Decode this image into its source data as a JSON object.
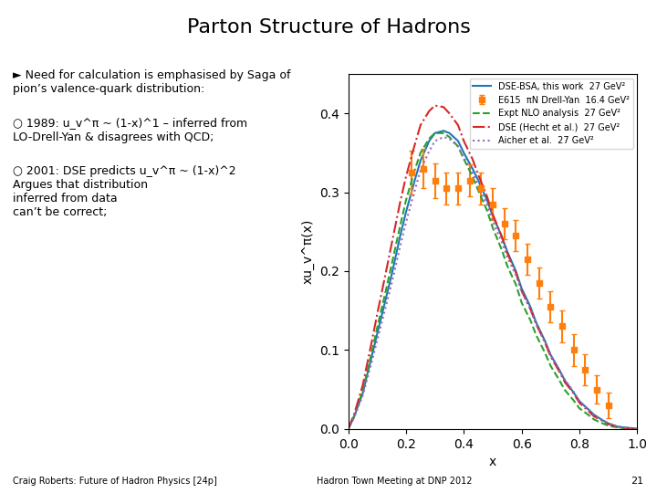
{
  "chart_data": {
    "type": "line",
    "title": "Parton Structure of Hadrons",
    "x_label": "x",
    "y_label": "xu_v^π(x)",
    "x": [
      0.0,
      0.02,
      0.05,
      0.08,
      0.1,
      0.13,
      0.15,
      0.18,
      0.2,
      0.23,
      0.25,
      0.28,
      0.3,
      0.33,
      0.35,
      0.38,
      0.4,
      0.43,
      0.45,
      0.48,
      0.5,
      0.53,
      0.55,
      0.58,
      0.6,
      0.63,
      0.65,
      0.68,
      0.7,
      0.73,
      0.75,
      0.78,
      0.8,
      0.83,
      0.85,
      0.88,
      0.9,
      0.93,
      0.95,
      0.98,
      1.0
    ],
    "series": [
      {
        "name": "DSE-BSA, this work  27 GeV²",
        "type": "line",
        "line_style": "solid",
        "values": [
          0.0,
          0.015,
          0.045,
          0.09,
          0.12,
          0.165,
          0.195,
          0.245,
          0.275,
          0.315,
          0.34,
          0.365,
          0.375,
          0.378,
          0.375,
          0.365,
          0.35,
          0.33,
          0.315,
          0.29,
          0.27,
          0.245,
          0.225,
          0.2,
          0.178,
          0.155,
          0.135,
          0.112,
          0.094,
          0.075,
          0.061,
          0.046,
          0.035,
          0.025,
          0.018,
          0.011,
          0.007,
          0.003,
          0.002,
          0.001,
          0.0
        ]
      },
      {
        "name": "E615  πN Drell-Yan  16.4 GeV²",
        "type": "errorbar",
        "marker": "square",
        "x": [
          0.22,
          0.26,
          0.3,
          0.34,
          0.38,
          0.42,
          0.46,
          0.5,
          0.54,
          0.58,
          0.62,
          0.66,
          0.7,
          0.74,
          0.78,
          0.82,
          0.86,
          0.9
        ],
        "values": [
          0.325,
          0.33,
          0.315,
          0.305,
          0.305,
          0.315,
          0.305,
          0.285,
          0.26,
          0.245,
          0.215,
          0.185,
          0.155,
          0.13,
          0.1,
          0.075,
          0.05,
          0.03
        ],
        "errors": [
          0.028,
          0.025,
          0.022,
          0.02,
          0.02,
          0.02,
          0.02,
          0.02,
          0.02,
          0.02,
          0.02,
          0.02,
          0.02,
          0.02,
          0.02,
          0.02,
          0.018,
          0.016
        ]
      },
      {
        "name": "Expt NLO analysis  27 GeV²",
        "type": "line",
        "line_style": "dashed",
        "values": [
          0.0,
          0.016,
          0.048,
          0.095,
          0.128,
          0.175,
          0.208,
          0.258,
          0.29,
          0.328,
          0.35,
          0.368,
          0.375,
          0.375,
          0.37,
          0.358,
          0.342,
          0.32,
          0.302,
          0.277,
          0.255,
          0.228,
          0.207,
          0.183,
          0.16,
          0.138,
          0.119,
          0.097,
          0.08,
          0.062,
          0.049,
          0.036,
          0.026,
          0.018,
          0.012,
          0.007,
          0.004,
          0.002,
          0.001,
          0.0,
          0.0
        ]
      },
      {
        "name": "DSE (Hecht et al.)  27 GeV²",
        "type": "line",
        "line_style": "dashdot",
        "values": [
          0.0,
          0.018,
          0.055,
          0.108,
          0.145,
          0.198,
          0.234,
          0.288,
          0.32,
          0.36,
          0.385,
          0.403,
          0.41,
          0.408,
          0.4,
          0.385,
          0.365,
          0.342,
          0.322,
          0.295,
          0.272,
          0.245,
          0.223,
          0.198,
          0.175,
          0.152,
          0.133,
          0.11,
          0.092,
          0.073,
          0.059,
          0.045,
          0.033,
          0.023,
          0.016,
          0.01,
          0.006,
          0.003,
          0.001,
          0.0,
          0.0
        ]
      },
      {
        "name": "Aicher et al.  27 GeV²",
        "type": "line",
        "line_style": "dotted",
        "values": [
          0.0,
          0.014,
          0.042,
          0.083,
          0.112,
          0.155,
          0.184,
          0.232,
          0.262,
          0.302,
          0.328,
          0.352,
          0.365,
          0.37,
          0.368,
          0.358,
          0.344,
          0.325,
          0.308,
          0.284,
          0.263,
          0.238,
          0.218,
          0.195,
          0.174,
          0.152,
          0.133,
          0.111,
          0.094,
          0.075,
          0.062,
          0.047,
          0.035,
          0.025,
          0.018,
          0.011,
          0.007,
          0.003,
          0.002,
          0.0,
          0.0
        ]
      }
    ],
    "xlim": [
      0.0,
      1.0
    ],
    "ylim": [
      0.0,
      0.45
    ],
    "xticks": [
      0.0,
      0.2,
      0.4,
      0.6,
      0.8,
      1.0
    ],
    "yticks": [
      0.0,
      0.1,
      0.2,
      0.3,
      0.4
    ],
    "grid": false,
    "legend": "upper right",
    "annotations": [
      "► Need for calculation is emphasised by Saga of\npion’s valence-quark distribution:",
      "○ 1989: u_v^π ~ (1-x)^1 – inferred from\nLO-Drell-Yan & disagrees with QCD;",
      "○ 2001: DSE predicts u_v^π ~ (1-x)^2\nArgues that distribution\ninferred from data\ncan’t be correct;",
      "Craig Roberts: Future of Hadron Physics [24p]",
      "Hadron Town Meeting at DNP 2012",
      "21"
    ]
  }
}
